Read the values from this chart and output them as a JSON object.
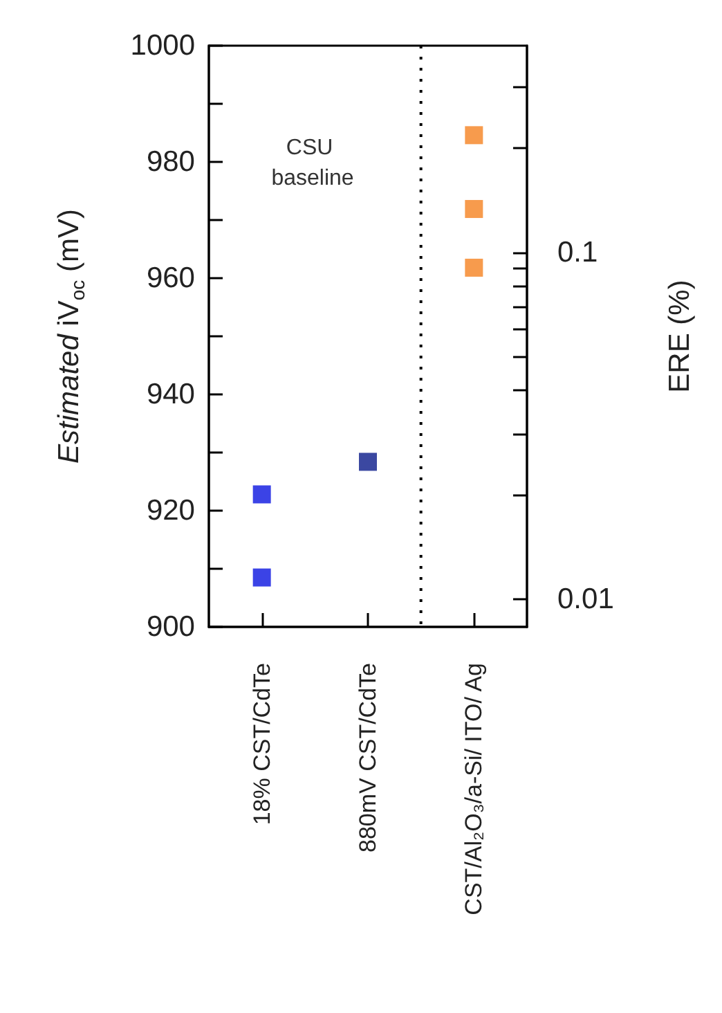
{
  "chart_data": {
    "type": "scatter",
    "ylabel": "Estimated iV$_{oc}$ (mV)",
    "y2label": "ERE (%)",
    "categories": [
      "18% CST/CdTe",
      "880mV CST/CdTe",
      "CST/Al₂O₃/a-Si/ ITO/ Ag"
    ],
    "series": [
      {
        "x": [
          "18% CST/CdTe",
          "18% CST/CdTe",
          "880mV CST/CdTe"
        ],
        "values": [
          922.8,
          908.5,
          928.4
        ],
        "colors": [
          "#0a14e0",
          "#0a14e0",
          "#0a1a8a"
        ]
      },
      {
        "x": [
          "CST/Al₂O₃/a-Si/ ITO/ Ag",
          "CST/Al₂O₃/a-Si/ ITO/ Ag",
          "CST/Al₂O₃/a-Si/ ITO/ Ag"
        ],
        "values": [
          984.6,
          971.9,
          961.8
        ],
        "color": "#f58220"
      }
    ],
    "ylim": [
      900,
      1000
    ],
    "yticks": [
      900,
      {
        "value": 910,
        "label": null
      },
      920,
      {
        "value": 930,
        "label": null
      },
      940,
      {
        "value": 950,
        "label": null
      },
      960,
      {
        "value": 970,
        "label": null
      },
      980,
      {
        "value": 990,
        "label": null
      },
      1000
    ],
    "y2lim": [
      0.0083,
      0.396
    ],
    "log": "y2",
    "y2ticks": [
      0.01,
      {
        "value": 0.02,
        "label": null
      },
      {
        "value": 0.03,
        "label": null
      },
      {
        "value": 0.04,
        "label": null
      },
      {
        "value": 0.05,
        "label": null
      },
      {
        "value": 0.06,
        "label": null
      },
      {
        "value": 0.07,
        "label": null
      },
      {
        "value": 0.08,
        "label": null
      },
      {
        "value": 0.09,
        "label": null
      },
      0.1,
      {
        "value": 0.2,
        "label": null
      },
      {
        "value": 0.3,
        "label": null
      }
    ],
    "annotations": [
      "CSU baseline"
    ],
    "marker": "square",
    "grid": false
  }
}
